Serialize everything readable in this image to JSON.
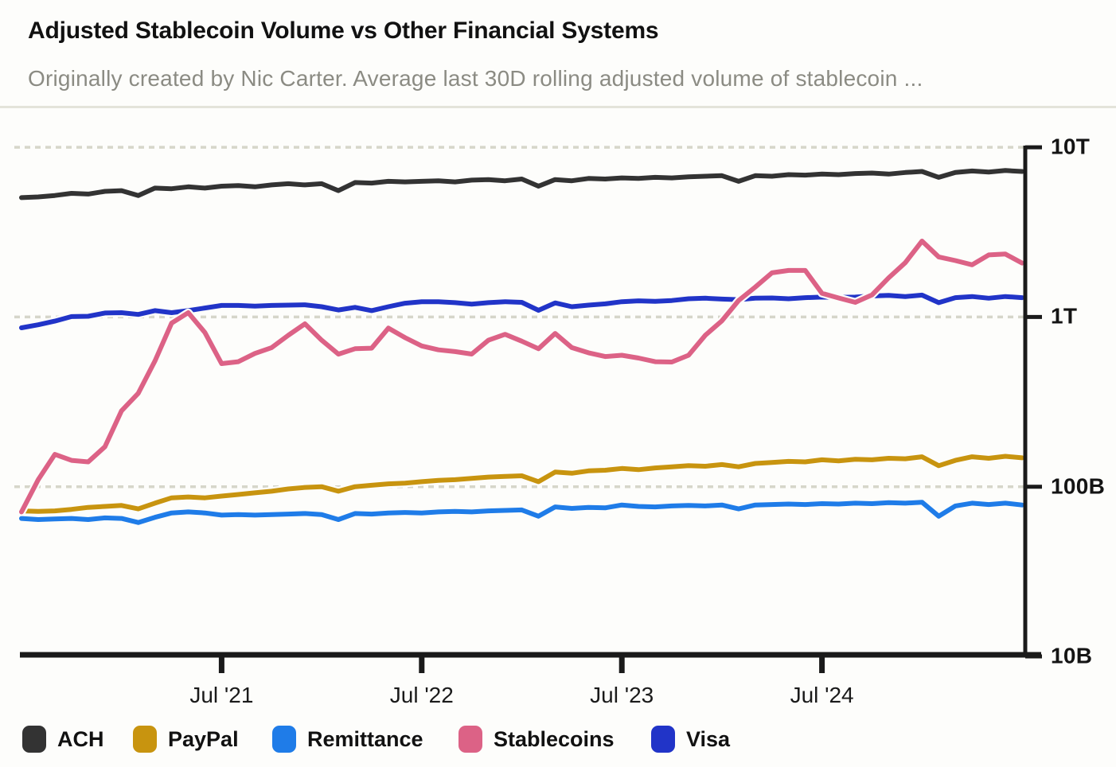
{
  "header": {
    "title": "Adjusted Stablecoin Volume vs Other Financial Systems",
    "subtitle": "Originally created by Nic Carter. Average last 30D rolling adjusted volume of stablecoin ..."
  },
  "chart_data": {
    "type": "line",
    "title": "Adjusted Stablecoin Volume vs Other Financial Systems",
    "x_axis": {
      "start_month": "Jul 2020",
      "end_month": "Jul 2025",
      "points_per_series": 61,
      "tick_labels": [
        "Jul '21",
        "Jul '22",
        "Jul '23",
        "Jul '24"
      ],
      "tick_month_indices": [
        12,
        24,
        36,
        48
      ]
    },
    "y_axis": {
      "scale": "log",
      "unit": "USD",
      "range_billion": [
        10,
        10000
      ],
      "ticks": [
        {
          "label": "10T",
          "value_billion": 10000,
          "gridline": true
        },
        {
          "label": "1T",
          "value_billion": 1000,
          "gridline": true
        },
        {
          "label": "100B",
          "value_billion": 100,
          "gridline": true
        },
        {
          "label": "10B",
          "value_billion": 10,
          "gridline": false
        }
      ]
    },
    "grid": "dashed horizontal",
    "legend_position": "bottom",
    "series": [
      {
        "name": "ACH",
        "color": "#333333",
        "unit": "billion USD",
        "values": [
          5050,
          5100,
          5200,
          5350,
          5300,
          5500,
          5550,
          5200,
          5750,
          5700,
          5850,
          5750,
          5900,
          5950,
          5850,
          6000,
          6100,
          6000,
          6100,
          5550,
          6200,
          6150,
          6300,
          6250,
          6300,
          6350,
          6250,
          6400,
          6450,
          6350,
          6500,
          5900,
          6450,
          6350,
          6550,
          6500,
          6600,
          6550,
          6650,
          6600,
          6700,
          6750,
          6800,
          6300,
          6800,
          6750,
          6900,
          6850,
          6950,
          6900,
          7000,
          7050,
          6950,
          7100,
          7200,
          6650,
          7100,
          7250,
          7150,
          7300,
          7200
        ]
      },
      {
        "name": "PayPal",
        "color": "#c8940f",
        "unit": "billion USD",
        "values": [
          72,
          71.5,
          72,
          73.5,
          75.5,
          76.5,
          77.5,
          74,
          80,
          86,
          87,
          86,
          88,
          90,
          92,
          94,
          97,
          99,
          100,
          94,
          100,
          102,
          104,
          105,
          107,
          109,
          110,
          112,
          114,
          115,
          116,
          107,
          122,
          120,
          124,
          125,
          128,
          126,
          129,
          131,
          133,
          132,
          135,
          131,
          137,
          139,
          141,
          140,
          144,
          142,
          145,
          144,
          147,
          146,
          150,
          133,
          143,
          150,
          147,
          151,
          148
        ]
      },
      {
        "name": "Remittance",
        "color": "#1f7ce8",
        "unit": "billion USD",
        "values": [
          65,
          64,
          64.5,
          65,
          64,
          65.5,
          65,
          61.5,
          66,
          70,
          71,
          70,
          68,
          68.5,
          68,
          68.5,
          69,
          69.5,
          68.5,
          64,
          69.5,
          69,
          70,
          70.5,
          70,
          71,
          71.5,
          71,
          72,
          72.5,
          73,
          67,
          76,
          74.5,
          75.5,
          75,
          78,
          76.5,
          76,
          77,
          77.5,
          77,
          78,
          74,
          78,
          78.5,
          79,
          78.5,
          79.5,
          79,
          80,
          79.5,
          80.5,
          80,
          81,
          67,
          77,
          80,
          78.5,
          80,
          78
        ]
      },
      {
        "name": "Stablecoins",
        "color": "#dc6286",
        "unit": "billion USD",
        "values": [
          71,
          110,
          155,
          143,
          140,
          172,
          280,
          355,
          550,
          920,
          1060,
          810,
          531,
          545,
          610,
          660,
          780,
          911,
          730,
          604,
          650,
          655,
          860,
          755,
          675,
          640,
          625,
          605,
          730,
          790,
          720,
          650,
          800,
          660,
          615,
          585,
          595,
          573,
          545,
          543,
          595,
          780,
          950,
          1250,
          1500,
          1820,
          1880,
          1880,
          1380,
          1295,
          1220,
          1350,
          1700,
          2090,
          2800,
          2260,
          2150,
          2030,
          2320,
          2350,
          2080
        ]
      },
      {
        "name": "Visa",
        "color": "#2134c8",
        "unit": "billion USD",
        "values": [
          863,
          900,
          945,
          1005,
          1010,
          1055,
          1060,
          1035,
          1090,
          1060,
          1090,
          1130,
          1170,
          1170,
          1160,
          1170,
          1175,
          1180,
          1150,
          1100,
          1140,
          1090,
          1150,
          1205,
          1230,
          1230,
          1215,
          1190,
          1215,
          1230,
          1220,
          1095,
          1210,
          1150,
          1175,
          1195,
          1230,
          1245,
          1235,
          1250,
          1280,
          1290,
          1275,
          1265,
          1290,
          1295,
          1280,
          1300,
          1310,
          1305,
          1310,
          1330,
          1340,
          1320,
          1345,
          1215,
          1300,
          1320,
          1290,
          1320,
          1300
        ]
      }
    ],
    "draw_order": [
      "ACH",
      "PayPal",
      "Remittance",
      "Visa",
      "Stablecoins"
    ]
  },
  "legend": {
    "items": [
      "ACH",
      "PayPal",
      "Remittance",
      "Stablecoins",
      "Visa"
    ]
  }
}
